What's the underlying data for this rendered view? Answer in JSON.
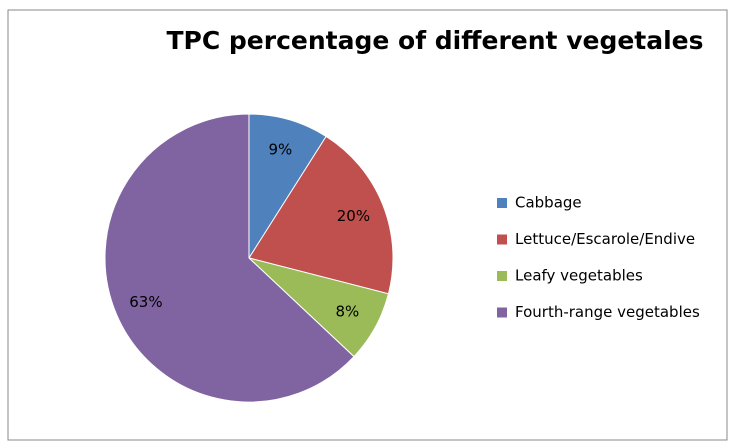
{
  "chart_data": {
    "type": "pie",
    "title": "TPC percentage of different vegetales",
    "categories": [
      "Cabbage",
      "Lettuce/Escarole/Endive",
      "Leafy vegetables",
      "Fourth-range vegetables"
    ],
    "values": [
      9,
      20,
      8,
      63
    ],
    "value_labels": [
      "9%",
      "20%",
      "8%",
      "63%"
    ],
    "colors": [
      "#4f81bd",
      "#c0504d",
      "#9bbb59",
      "#8064a2"
    ],
    "legend": "right"
  }
}
